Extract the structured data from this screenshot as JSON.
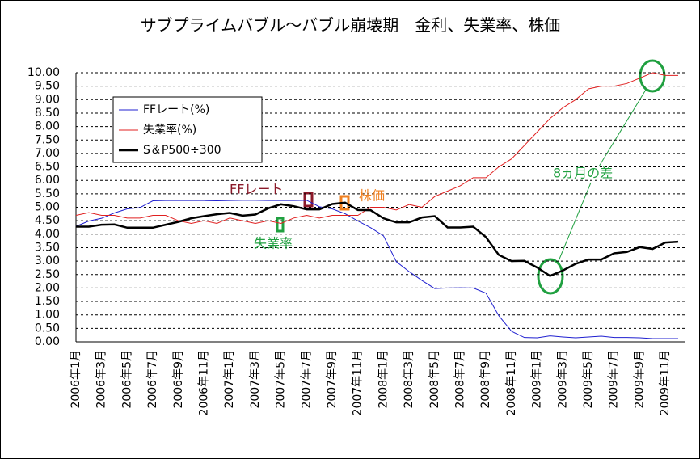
{
  "chart_data": {
    "type": "line",
    "title": "サブプライムバブル～バブル崩壊期　金利、失業率、株価",
    "categories": [
      "2006年1月",
      null,
      "2006年3月",
      null,
      "2006年5月",
      null,
      "2006年7月",
      null,
      "2006年9月",
      null,
      "2006年11月",
      null,
      "2007年1月",
      null,
      "2007年3月",
      null,
      "2007年5月",
      null,
      "2007年7月",
      null,
      "2007年9月",
      null,
      "2007年11月",
      null,
      "2008年1月",
      null,
      "2008年3月",
      null,
      "2008年5月",
      null,
      "2008年7月",
      null,
      "2008年9月",
      null,
      "2008年11月",
      null,
      "2009年1月",
      null,
      "2009年3月",
      null,
      "2009年5月",
      null,
      "2009年7月",
      null,
      "2009年9月",
      null,
      "2009年11月",
      null
    ],
    "series": [
      {
        "name": "FFレート(%)",
        "color": "#2020d0",
        "values": [
          4.29,
          4.49,
          4.59,
          4.79,
          4.94,
          4.99,
          5.24,
          5.25,
          5.25,
          5.25,
          5.25,
          5.24,
          5.25,
          5.26,
          5.26,
          5.25,
          5.25,
          5.25,
          5.26,
          5.02,
          4.94,
          4.76,
          4.49,
          4.24,
          3.94,
          2.98,
          2.61,
          2.28,
          1.98,
          2.0,
          2.01,
          2.0,
          1.81,
          0.97,
          0.39,
          0.16,
          0.15,
          0.22,
          0.18,
          0.15,
          0.18,
          0.21,
          0.16,
          0.16,
          0.15,
          0.12,
          0.12,
          0.12
        ]
      },
      {
        "name": "失業率(%)",
        "color": "#e02020",
        "values": [
          4.7,
          4.8,
          4.7,
          4.7,
          4.6,
          4.6,
          4.7,
          4.7,
          4.5,
          4.4,
          4.5,
          4.4,
          4.6,
          4.5,
          4.4,
          4.5,
          4.4,
          4.6,
          4.7,
          4.6,
          4.7,
          4.7,
          4.7,
          5.0,
          5.0,
          4.9,
          5.1,
          5.0,
          5.4,
          5.6,
          5.8,
          6.1,
          6.1,
          6.5,
          6.8,
          7.3,
          7.8,
          8.3,
          8.7,
          9.0,
          9.4,
          9.5,
          9.5,
          9.6,
          9.8,
          10.0,
          9.9,
          9.9
        ]
      },
      {
        "name": "S＆P500÷300",
        "color": "#000000",
        "values": [
          4.28,
          4.28,
          4.35,
          4.36,
          4.24,
          4.24,
          4.24,
          4.35,
          4.46,
          4.59,
          4.67,
          4.74,
          4.79,
          4.69,
          4.73,
          4.96,
          5.11,
          5.04,
          4.92,
          4.92,
          5.12,
          5.17,
          4.9,
          4.89,
          4.59,
          4.44,
          4.44,
          4.62,
          4.67,
          4.25,
          4.25,
          4.28,
          3.89,
          3.23,
          3.0,
          3.01,
          2.76,
          2.45,
          2.65,
          2.9,
          3.06,
          3.06,
          3.29,
          3.34,
          3.52,
          3.45,
          3.69,
          3.72
        ]
      }
    ],
    "ylim": [
      0,
      10
    ],
    "yticks": [
      {
        "value": 0,
        "label": "0.00"
      },
      {
        "value": 0.5,
        "label": "0.50"
      },
      {
        "value": 1,
        "label": "1.00"
      },
      {
        "value": 1.5,
        "label": "1.50"
      },
      {
        "value": 2,
        "label": "2.00"
      },
      {
        "value": 2.5,
        "label": "2.50"
      },
      {
        "value": 3,
        "label": "3.00"
      },
      {
        "value": 3.5,
        "label": "3.50"
      },
      {
        "value": 4,
        "label": "4.00"
      },
      {
        "value": 4.5,
        "label": "4.50"
      },
      {
        "value": 5,
        "label": "5.00"
      },
      {
        "value": 5.5,
        "label": "5.50"
      },
      {
        "value": 6,
        "label": "6.00"
      },
      {
        "value": 6.5,
        "label": "6.50"
      },
      {
        "value": 7,
        "label": "7.00"
      },
      {
        "value": 7.5,
        "label": "7.50"
      },
      {
        "value": 8,
        "label": "8.00"
      },
      {
        "value": 8.5,
        "label": "8.50"
      },
      {
        "value": 9,
        "label": "9.00"
      },
      {
        "value": 9.5,
        "label": "9.50"
      },
      {
        "value": 10,
        "label": "10.00"
      }
    ],
    "grid": true,
    "legend": "upper-left",
    "annotations": [
      {
        "text": "FFレート",
        "color": "#8b1a2a"
      },
      {
        "text": "株価",
        "color": "#f08020"
      },
      {
        "text": "失業率",
        "color": "#20a040"
      },
      {
        "text": "8ヵ月の差",
        "color": "#20a040"
      }
    ]
  }
}
